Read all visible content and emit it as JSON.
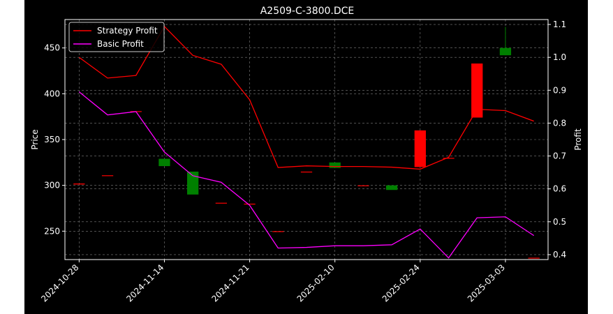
{
  "chart_data": {
    "type": "candlestick+line",
    "title": "A2509-C-3800.DCE",
    "ylabel_left": "Price",
    "ylabel_right": "Profit",
    "ylim_left": [
      219,
      481
    ],
    "ylim_right": [
      0.385,
      1.115
    ],
    "yticks_left": [
      250,
      300,
      350,
      400,
      450
    ],
    "yticks_right": [
      0.4,
      0.5,
      0.6,
      0.7,
      0.8,
      0.9,
      1.0,
      1.1
    ],
    "ytick_labels_right": [
      "0.4",
      "0.5",
      "0.6",
      "0.7",
      "0.8",
      "0.9",
      "1.0",
      "1.1"
    ],
    "x_tick_labels": [
      "2024-10-28",
      "2024-11-14",
      "2024-11-21",
      "2025-02-10",
      "2025-02-24",
      "2025-03-03"
    ],
    "x_tick_positions": [
      0,
      3,
      6,
      9,
      12,
      15
    ],
    "x_range": [
      -0.5,
      16.5
    ],
    "grid": true,
    "legend_location": "upper left",
    "candles": [
      {
        "x": 0,
        "open": 301,
        "close": 302,
        "high": 302,
        "low": 301
      },
      {
        "x": 1,
        "open": 311,
        "close": 311,
        "high": 311,
        "low": 311
      },
      {
        "x": 2,
        "open": 381,
        "close": 381,
        "high": 381,
        "low": 381
      },
      {
        "x": 3,
        "open": 329,
        "close": 321,
        "high": 329,
        "low": 321
      },
      {
        "x": 4,
        "open": 315,
        "close": 290,
        "high": 315,
        "low": 290
      },
      {
        "x": 5,
        "open": 281,
        "close": 281,
        "high": 281,
        "low": 281
      },
      {
        "x": 6,
        "open": 280,
        "close": 280,
        "high": 280,
        "low": 280
      },
      {
        "x": 7,
        "open": 250,
        "close": 250,
        "high": 250,
        "low": 250
      },
      {
        "x": 8,
        "open": 315,
        "close": 315,
        "high": 315,
        "low": 315
      },
      {
        "x": 9,
        "open": 325,
        "close": 319,
        "high": 325,
        "low": 319
      },
      {
        "x": 10,
        "open": 300,
        "close": 300,
        "high": 300,
        "low": 300
      },
      {
        "x": 11,
        "open": 300,
        "close": 295,
        "high": 300,
        "low": 295
      },
      {
        "x": 12,
        "open": 320,
        "close": 360,
        "high": 360,
        "low": 320
      },
      {
        "x": 13,
        "open": 330,
        "close": 330,
        "high": 330,
        "low": 330
      },
      {
        "x": 14,
        "open": 374,
        "close": 433,
        "high": 433,
        "low": 374
      },
      {
        "x": 15,
        "open": 450,
        "close": 442,
        "high": 473,
        "low": 442
      },
      {
        "x": 16,
        "open": 221,
        "close": 221,
        "high": 221,
        "low": 221
      }
    ],
    "series": [
      {
        "name": "Strategy Profit",
        "color": "#ff0000",
        "x": [
          0,
          1,
          2,
          3,
          4,
          5,
          6,
          7,
          8,
          9,
          10,
          11,
          12,
          13,
          14,
          15,
          16
        ],
        "values": [
          1.0,
          0.937,
          0.945,
          1.094,
          1.006,
          0.979,
          0.871,
          0.665,
          0.67,
          0.668,
          0.668,
          0.666,
          0.66,
          0.696,
          0.842,
          0.838,
          0.806
        ]
      },
      {
        "name": "Basic Profit",
        "color": "#ff00ff",
        "x": [
          0,
          1,
          2,
          3,
          4,
          5,
          6,
          7,
          8,
          9,
          10,
          11,
          12,
          13,
          14,
          15,
          16
        ],
        "values": [
          0.895,
          0.825,
          0.835,
          0.712,
          0.64,
          0.62,
          0.55,
          0.42,
          0.422,
          0.427,
          0.427,
          0.43,
          0.478,
          0.39,
          0.512,
          0.515,
          0.458
        ]
      }
    ],
    "colors": {
      "up": "#ff0000",
      "down": "#008000",
      "background": "#000000",
      "grid": "#808080",
      "text": "#ffffff"
    }
  }
}
